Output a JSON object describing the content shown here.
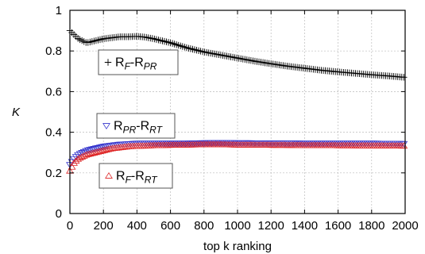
{
  "chart_data": {
    "type": "scatter",
    "xlabel": "top k ranking",
    "ylabel": "K",
    "xlim": [
      0,
      2000
    ],
    "ylim": [
      0,
      1
    ],
    "xticks": [
      "0",
      "200",
      "400",
      "600",
      "800",
      "1000",
      "1200",
      "1400",
      "1600",
      "1800",
      "2000"
    ],
    "yticks": [
      "0",
      "0.2",
      "0.4",
      "0.6",
      "0.8",
      "1"
    ],
    "grid": true,
    "series": [
      {
        "name": "RF-RPR",
        "label_main": [
          "R",
          "-R"
        ],
        "label_sub": [
          "F",
          "PR"
        ],
        "marker": "plus",
        "color": "#000000",
        "x": [
          0,
          50,
          100,
          150,
          200,
          250,
          300,
          350,
          400,
          450,
          500,
          600,
          700,
          800,
          900,
          1000,
          1100,
          1200,
          1300,
          1400,
          1500,
          1600,
          1700,
          1800,
          1900,
          2000
        ],
        "y": [
          0.9,
          0.86,
          0.84,
          0.85,
          0.86,
          0.865,
          0.87,
          0.87,
          0.872,
          0.868,
          0.86,
          0.84,
          0.815,
          0.795,
          0.78,
          0.765,
          0.75,
          0.737,
          0.725,
          0.715,
          0.705,
          0.697,
          0.69,
          0.683,
          0.677,
          0.67
        ]
      },
      {
        "name": "RPR-RRT",
        "label_main": [
          "R",
          "-R"
        ],
        "label_sub": [
          "PR",
          "RT"
        ],
        "marker": "triangle-down",
        "color": "#3333cc",
        "x": [
          0,
          25,
          50,
          100,
          150,
          200,
          250,
          300,
          350,
          400,
          450,
          500,
          600,
          700,
          800,
          900,
          1000,
          1200,
          1400,
          1600,
          1800,
          2000
        ],
        "y": [
          0.24,
          0.27,
          0.29,
          0.31,
          0.32,
          0.33,
          0.335,
          0.34,
          0.342,
          0.345,
          0.345,
          0.345,
          0.345,
          0.345,
          0.347,
          0.348,
          0.347,
          0.346,
          0.345,
          0.345,
          0.345,
          0.343
        ]
      },
      {
        "name": "RF-RRT",
        "label_main": [
          "R",
          "-R"
        ],
        "label_sub": [
          "F",
          "RT"
        ],
        "marker": "triangle-up",
        "color": "#dd2222",
        "x": [
          0,
          25,
          50,
          100,
          150,
          200,
          250,
          300,
          350,
          400,
          450,
          500,
          600,
          700,
          800,
          900,
          1000,
          1200,
          1400,
          1600,
          1800,
          2000
        ],
        "y": [
          0.21,
          0.25,
          0.27,
          0.29,
          0.3,
          0.31,
          0.32,
          0.325,
          0.33,
          0.332,
          0.333,
          0.335,
          0.337,
          0.338,
          0.34,
          0.34,
          0.338,
          0.337,
          0.336,
          0.335,
          0.334,
          0.333
        ]
      }
    ]
  }
}
